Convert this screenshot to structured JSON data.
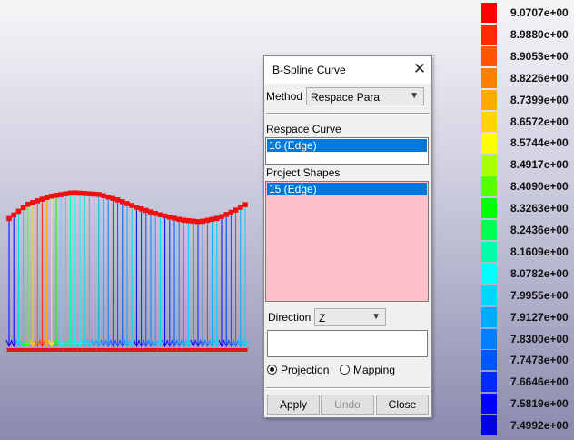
{
  "dialog": {
    "title": "B-Spline Curve",
    "method_label": "Method",
    "method_value": "Respace Para",
    "respace_label": "Respace Curve",
    "respace_item": "16 (Edge)",
    "project_label": "Project Shapes",
    "project_item": "15 (Edge)",
    "direction_label": "Direction",
    "direction_value": "Z",
    "direction_input_value": "",
    "radio_projection": "Projection",
    "radio_mapping": "Mapping",
    "selected_radio": "Projection",
    "apply_label": "Apply",
    "undo_label": "Undo",
    "close_label": "Close",
    "close_icon": "close-icon",
    "dropdown_icon": "chevron-down-icon"
  },
  "legend": {
    "labels": [
      "9.0707e+00",
      "8.9880e+00",
      "8.9053e+00",
      "8.8226e+00",
      "8.7399e+00",
      "8.6572e+00",
      "8.5744e+00",
      "8.4917e+00",
      "8.4090e+00",
      "8.3263e+00",
      "8.2436e+00",
      "8.1609e+00",
      "8.0782e+00",
      "7.9955e+00",
      "7.9127e+00",
      "7.8300e+00",
      "7.7473e+00",
      "7.6646e+00",
      "7.5819e+00",
      "7.4992e+00"
    ],
    "colors": [
      "#ff0000",
      "#ff2a00",
      "#ff5500",
      "#ff8000",
      "#ffaa00",
      "#ffd400",
      "#ffff00",
      "#aaff00",
      "#55ff00",
      "#00ff00",
      "#00ff55",
      "#00ffaa",
      "#00ffff",
      "#00d4ff",
      "#00aaff",
      "#0080ff",
      "#0055ff",
      "#002aff",
      "#0000ff",
      "#0000e0"
    ]
  },
  "colors": {
    "curve_points": "#ee1111",
    "list_selection": "#0078d7",
    "project_list_bg": "#ffc0cb"
  }
}
